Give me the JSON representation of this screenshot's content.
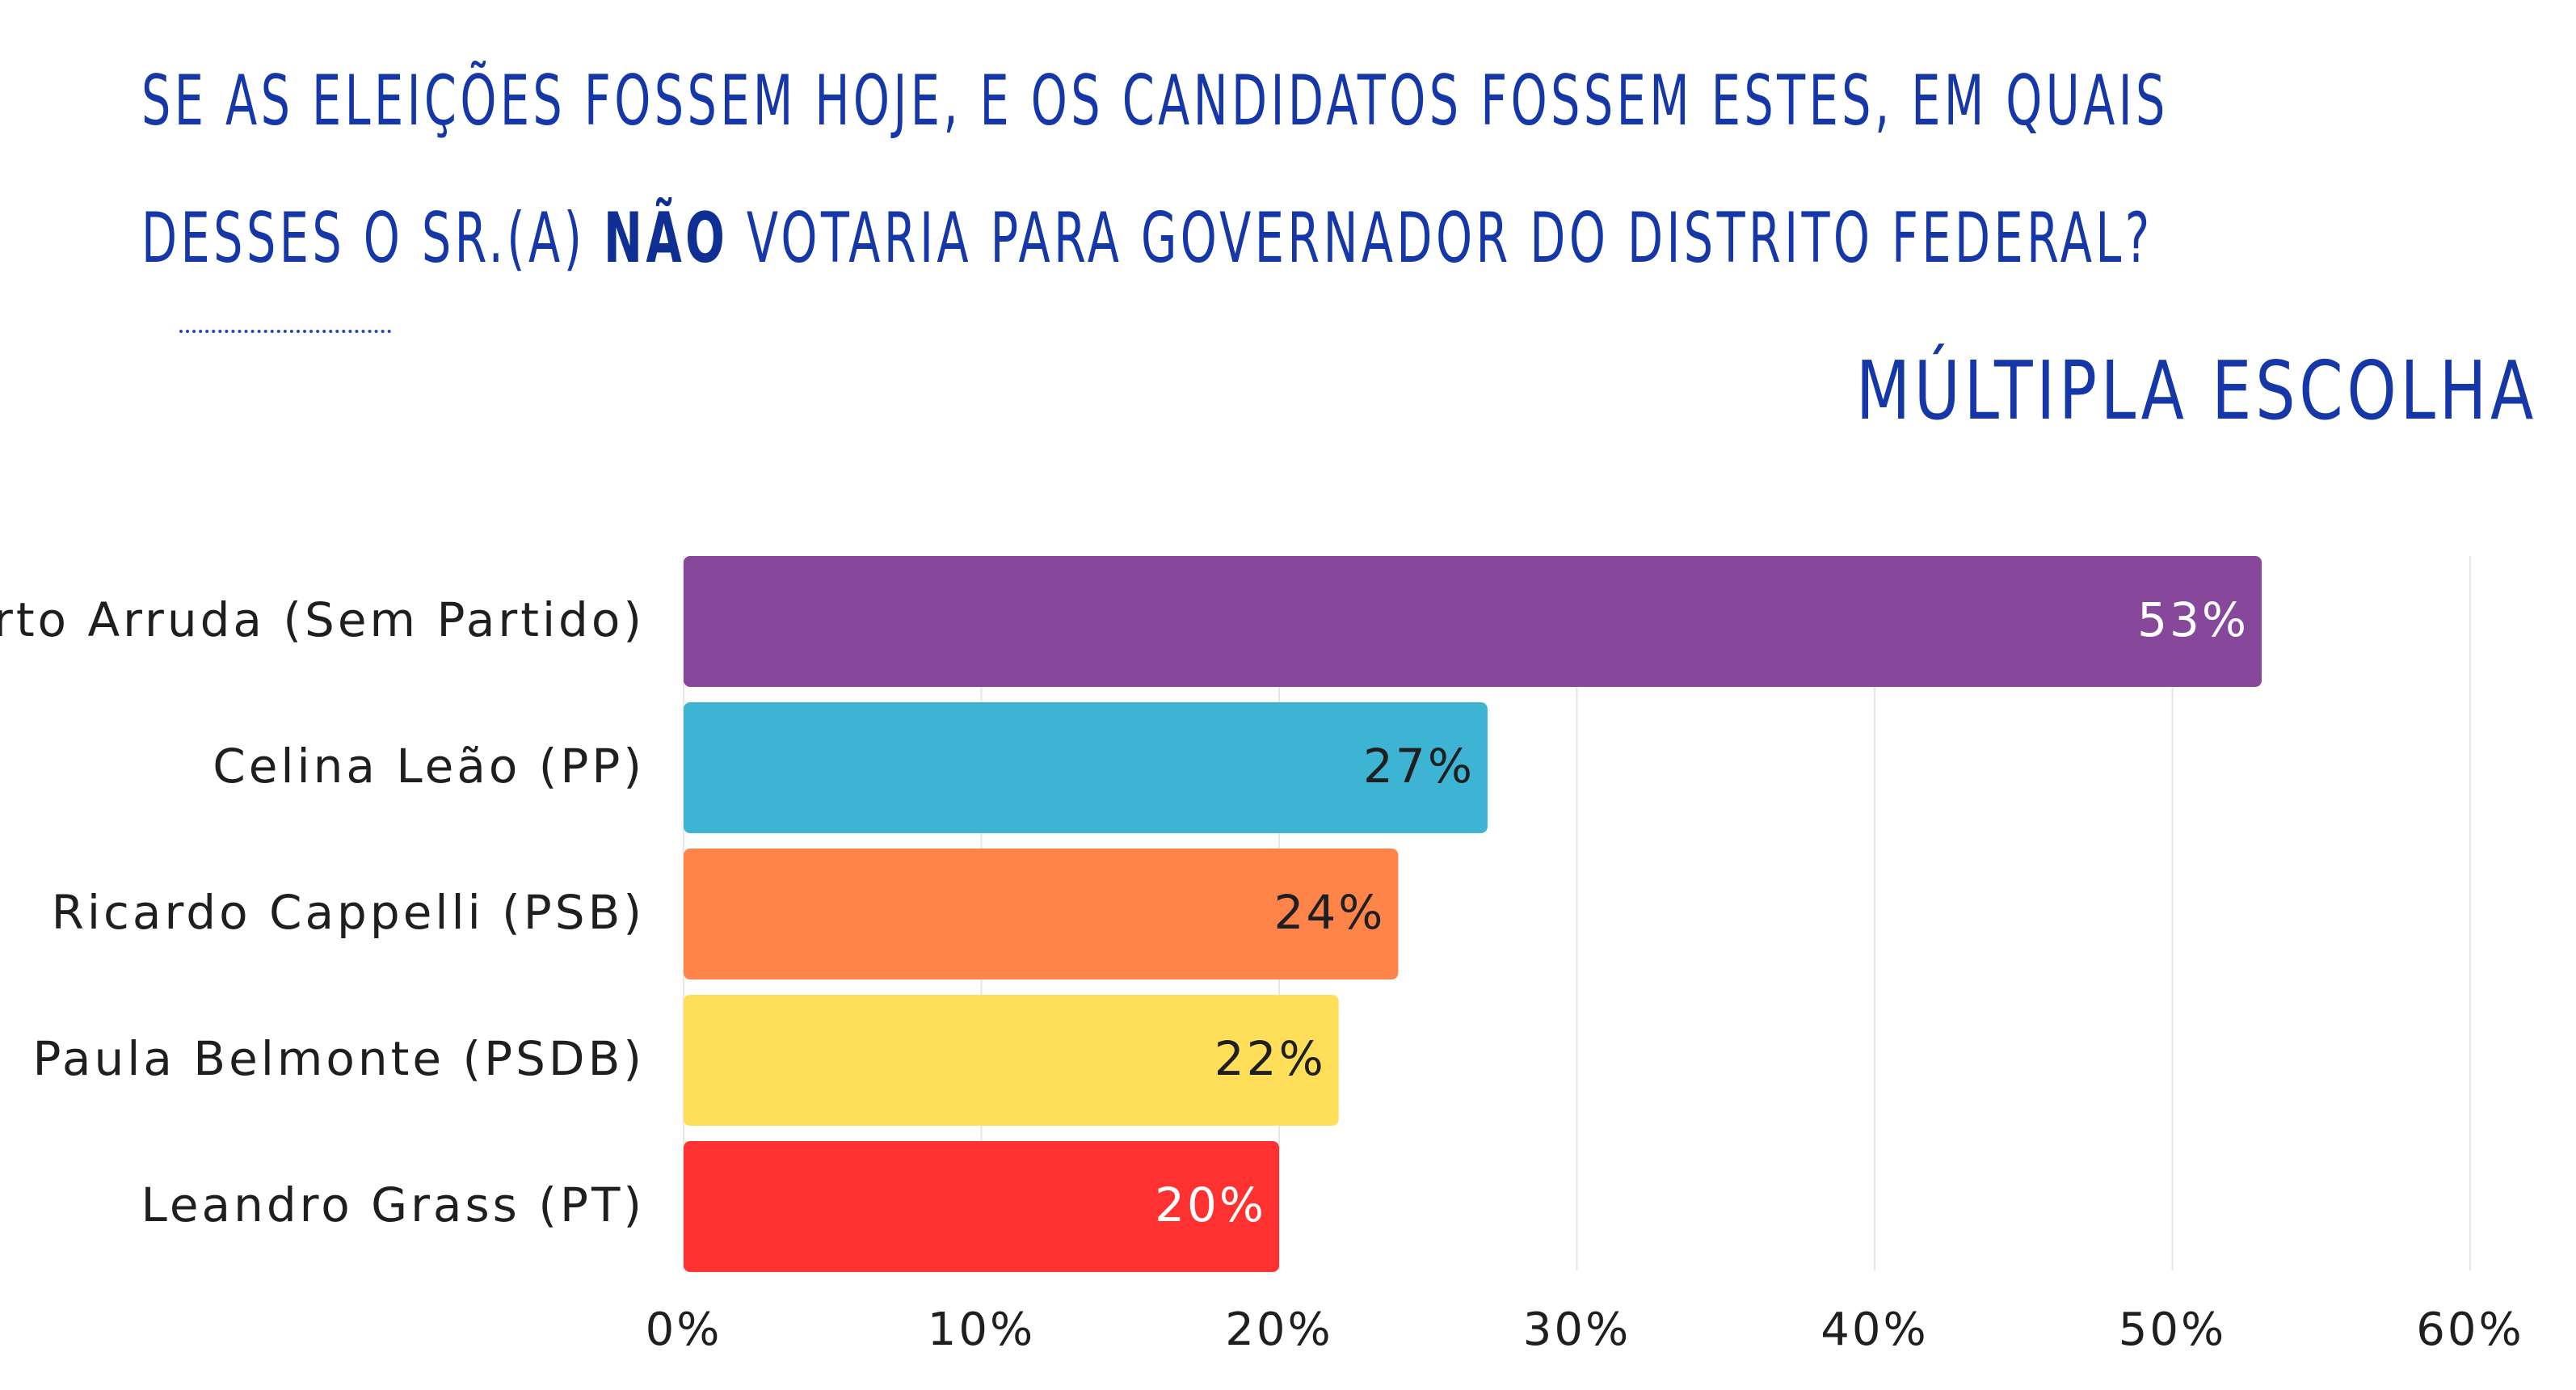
{
  "header": {
    "title_line1": "SE AS ELEIÇÕES FOSSEM HOJE, E OS CANDIDATOS FOSSEM ESTES, EM QUAIS",
    "title_line2_prefix": "DESSES O SR.(A) ",
    "title_line2_emphasis": "NÃO",
    "title_line2_suffix": " VOTARIA PARA GOVERNADOR DO DISTRITO FEDERAL?",
    "subtitle": "MÚLTIPLA ESCOLHA"
  },
  "chart_data": {
    "type": "bar",
    "orientation": "horizontal",
    "title": "SE AS ELEIÇÕES FOSSEM HOJE, E OS CANDIDATOS FOSSEM ESTES, EM QUAIS DESSES O SR.(A) NÃO VOTARIA PARA GOVERNADOR DO DISTRITO FEDERAL?",
    "subtitle": "MÚLTIPLA ESCOLHA",
    "categories": [
      "José Roberto Arruda (Sem Partido)",
      "Celina Leão (PP)",
      "Ricardo Cappelli (PSB)",
      "Paula Belmonte (PSDB)",
      "Leandro Grass (PT)"
    ],
    "values": [
      53,
      27,
      24,
      22,
      20
    ],
    "value_labels": [
      "53%",
      "27%",
      "24%",
      "22%",
      "20%"
    ],
    "bar_colors": [
      "#87479a",
      "#3eb4d4",
      "#ff844a",
      "#ffde59",
      "#ff3131"
    ],
    "value_label_colors": [
      "#ffffff",
      "#1f1f1f",
      "#1f1f1f",
      "#1f1f1f",
      "#ffffff"
    ],
    "xlim": [
      0,
      60
    ],
    "x_ticks": [
      0,
      10,
      20,
      30,
      40,
      50,
      60
    ],
    "x_tick_labels": [
      "0%",
      "10%",
      "20%",
      "30%",
      "40%",
      "50%",
      "60%"
    ],
    "xlabel": "",
    "ylabel": "",
    "grid": true,
    "legend": "none"
  },
  "colors": {
    "title": "#1537a8",
    "grid": "#e6e6e6",
    "text": "#1f1f1f"
  }
}
